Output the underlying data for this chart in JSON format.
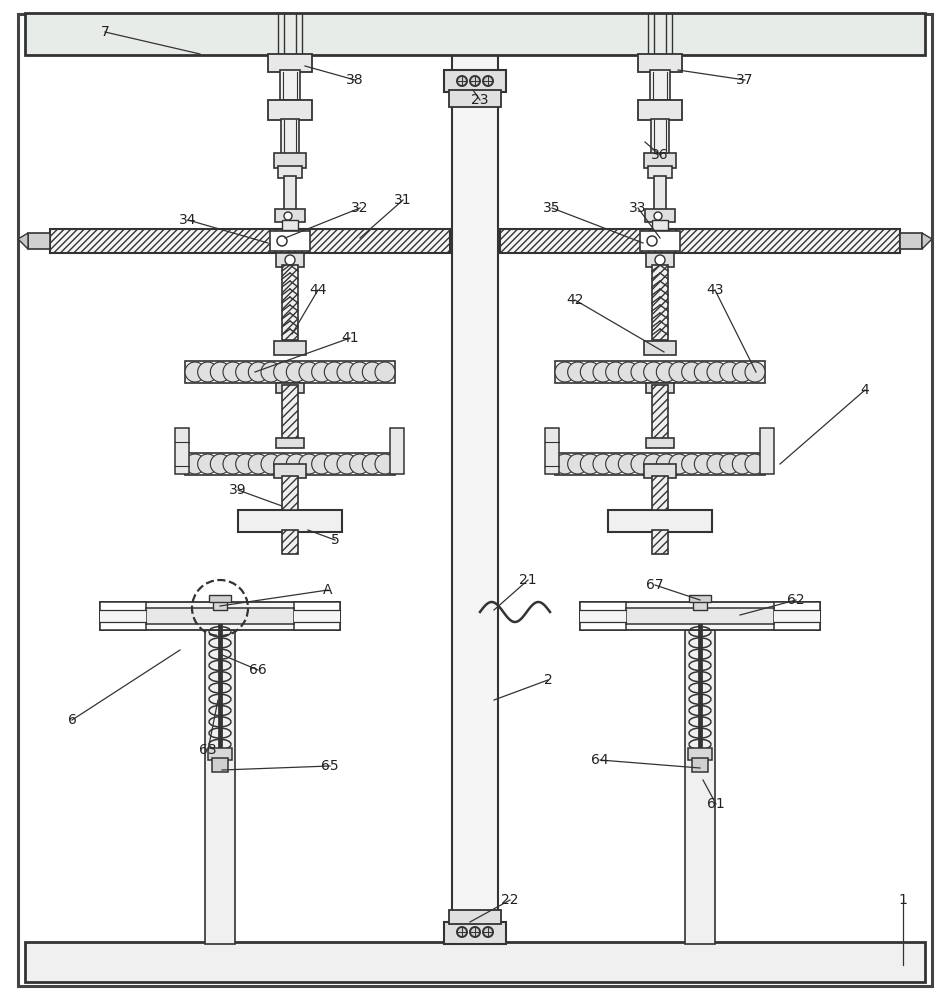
{
  "bg_color": "#ffffff",
  "line_color": "#333333",
  "label_color": "#222222"
}
